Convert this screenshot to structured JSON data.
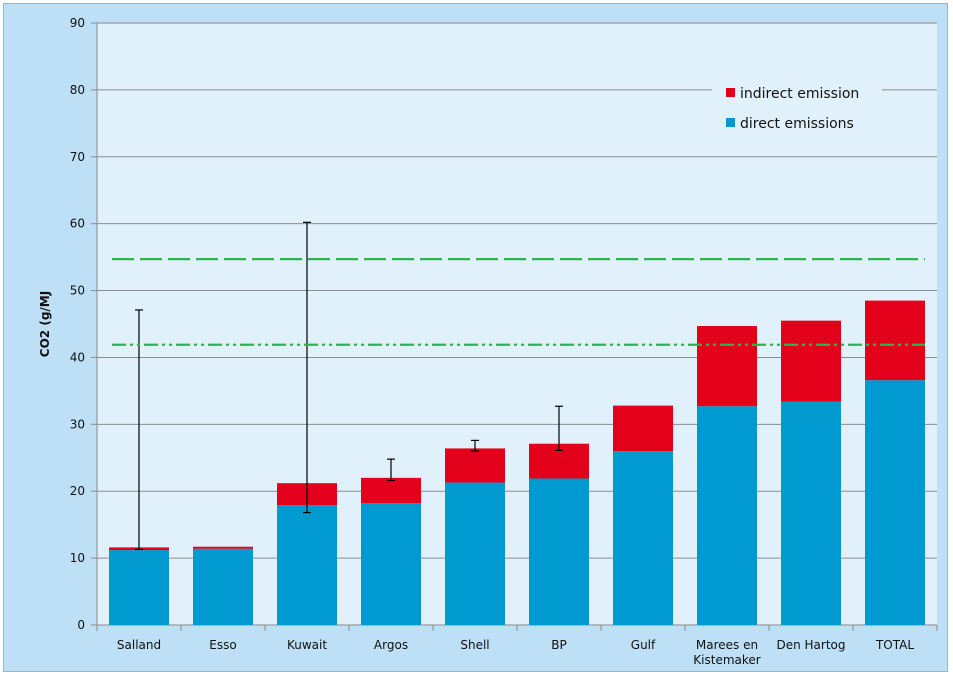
{
  "chart_data": {
    "type": "bar",
    "stacked": true,
    "categories": [
      [
        "Salland"
      ],
      [
        "Esso"
      ],
      [
        "Kuwait"
      ],
      [
        "Argos"
      ],
      [
        "Shell"
      ],
      [
        "BP"
      ],
      [
        "Gulf"
      ],
      [
        "Marees en",
        "Kistemaker"
      ],
      [
        "Den Hartog"
      ],
      [
        "TOTAL"
      ]
    ],
    "series": [
      {
        "name": "direct emissions",
        "color": "#0099d0",
        "values": [
          11.2,
          11.4,
          17.9,
          18.2,
          21.3,
          21.9,
          26.0,
          32.7,
          33.4,
          36.6
        ]
      },
      {
        "name": "indirect emission",
        "color": "#e2001a",
        "values": [
          0.4,
          0.3,
          3.3,
          3.8,
          5.1,
          5.2,
          6.8,
          12.0,
          12.1,
          11.9
        ]
      }
    ],
    "error_bars": [
      {
        "index": 0,
        "low": 11.3,
        "high": 47.1
      },
      {
        "index": 2,
        "low": 16.8,
        "high": 60.2
      },
      {
        "index": 3,
        "low": 21.6,
        "high": 24.8
      },
      {
        "index": 4,
        "low": 26.0,
        "high": 27.6
      },
      {
        "index": 5,
        "low": 26.1,
        "high": 32.7
      }
    ],
    "reference_lines": [
      {
        "value": 54.7,
        "style": "dashed",
        "color": "#2eb34f"
      },
      {
        "value": 41.9,
        "style": "dash-dot-dot",
        "color": "#2eb34f"
      }
    ],
    "ylabel": "CO2 (g/MJ",
    "xlabel": "",
    "title": "",
    "ylim": [
      0,
      90
    ],
    "yticks": [
      0,
      10,
      20,
      30,
      40,
      50,
      60,
      70,
      80,
      90
    ],
    "grid": true,
    "legend_position": "top-right",
    "legend_order": [
      "indirect emission",
      "direct emissions"
    ],
    "plot_background": "#e1f1fb",
    "outer_background": "#bde0f7"
  }
}
